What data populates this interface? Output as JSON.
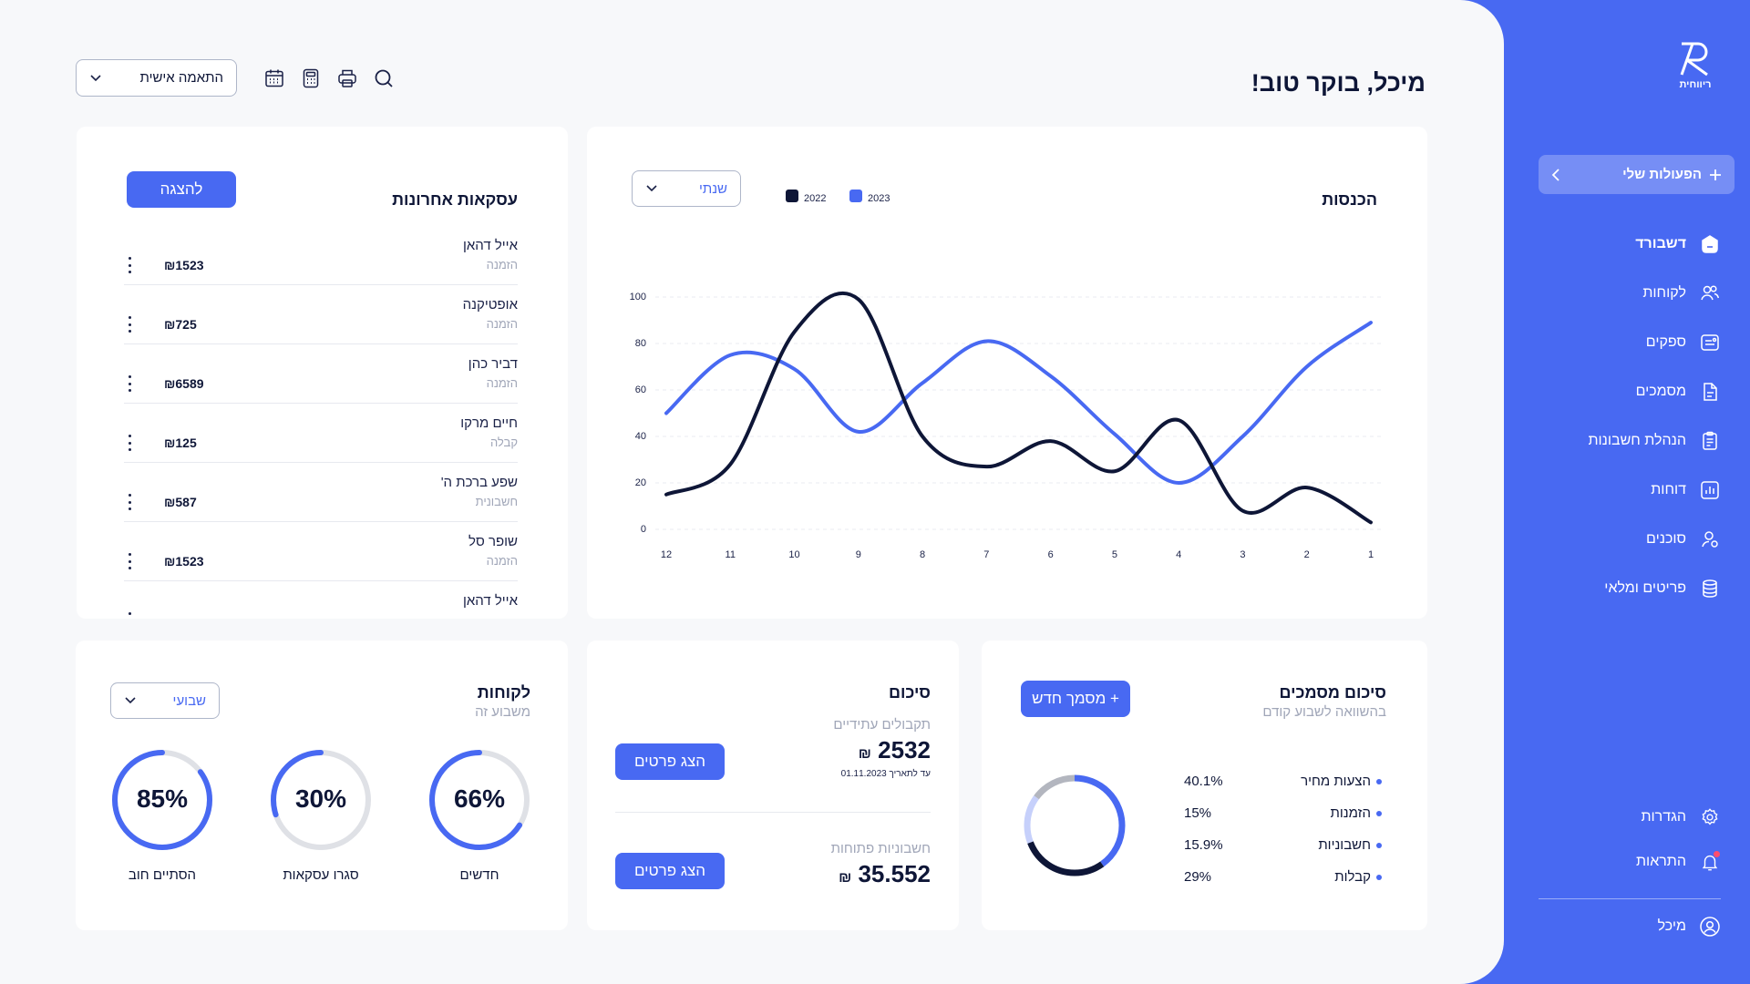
{
  "header": {
    "greeting": "מיכל, בוקר טוב!",
    "customize_label": "התאמה אישית"
  },
  "sidebar": {
    "logo_text": "ריווחית",
    "actions_label": "הפעולות שלי",
    "items": [
      {
        "label": "דשבורד",
        "icon": "dashboard-icon",
        "active": true
      },
      {
        "label": "לקוחות",
        "icon": "customers-icon"
      },
      {
        "label": "ספקים",
        "icon": "suppliers-icon"
      },
      {
        "label": "מסמכים",
        "icon": "documents-icon"
      },
      {
        "label": "הנהלת חשבונות",
        "icon": "bookkeeping-icon"
      },
      {
        "label": "דוחות",
        "icon": "reports-icon"
      },
      {
        "label": "סוכנים",
        "icon": "agents-icon"
      },
      {
        "label": "פריטים ומלאי",
        "icon": "inventory-icon"
      }
    ],
    "settings_label": "הגדרות",
    "notifications_label": "התראות",
    "user_label": "מיכל"
  },
  "deals": {
    "title": "עסקאות אחרונות",
    "view_button": "להצגה",
    "rows": [
      {
        "name": "אייל דהאן",
        "type": "הזמנה",
        "amount": "₪1523"
      },
      {
        "name": "אופטיקנה",
        "type": "הזמנה",
        "amount": "₪725"
      },
      {
        "name": "דביר כהן",
        "type": "הזמנה",
        "amount": "₪6589"
      },
      {
        "name": "חיים מרקו",
        "type": "קבלה",
        "amount": "₪125"
      },
      {
        "name": "שפע ברכת ה'",
        "type": "חשבונית",
        "amount": "₪587"
      },
      {
        "name": "שופר סל",
        "type": "הזמנה",
        "amount": "₪1523"
      },
      {
        "name": "אייל דהאן",
        "type": "",
        "amount": ""
      }
    ]
  },
  "income": {
    "title": "הכנסות",
    "period": "שנתי"
  },
  "chart_data": {
    "type": "line",
    "title": "הכנסות",
    "x": [
      12,
      11,
      10,
      9,
      8,
      7,
      6,
      5,
      4,
      3,
      2,
      1
    ],
    "ylim": [
      0,
      100
    ],
    "yticks": [
      0,
      20,
      40,
      60,
      80,
      100
    ],
    "series": [
      {
        "name": "2023",
        "color": "#4869f2",
        "values": [
          50,
          75,
          69,
          42,
          63,
          81,
          66,
          41,
          20,
          40,
          70,
          89
        ]
      },
      {
        "name": "2022",
        "color": "#0e1637",
        "values": [
          15,
          28,
          85,
          99,
          40,
          27,
          38,
          25,
          47,
          8,
          18,
          3
        ]
      }
    ],
    "legend": "top-left",
    "grid": true
  },
  "customers": {
    "title": "לקוחות",
    "subtitle": "משבוע זה",
    "period": "שבועי",
    "rings": [
      {
        "label": "חדשים",
        "value": "66%",
        "fraction": 0.66
      },
      {
        "label": "סגרו עסקאות",
        "value": "30%",
        "fraction": 0.3
      },
      {
        "label": "הסתיים חוב",
        "value": "85%",
        "fraction": 0.85
      }
    ]
  },
  "summary": {
    "title": "סיכום",
    "future_label": "תקבולים עתידיים",
    "future_amount": "2532",
    "future_currency": "₪",
    "future_date": "עד לתאריך 01.11.2023",
    "open_label": "חשבוניות פתוחות",
    "open_amount": "35.552",
    "open_currency": "₪",
    "details_button": "הצג פרטים"
  },
  "docs_summary": {
    "title": "סיכום מסמכים",
    "subtitle": "בהשוואה לשבוע קודם",
    "new_button": "+ מסמך חדש",
    "items": [
      {
        "label": "הצעות מחיר",
        "value": "40.1%"
      },
      {
        "label": "הזמנות",
        "value": "15%"
      },
      {
        "label": "חשבוניות",
        "value": "15.9%"
      },
      {
        "label": "קבלות",
        "value": "29%"
      }
    ],
    "donut": [
      {
        "fraction": 0.401,
        "color": "#4869f2"
      },
      {
        "fraction": 0.29,
        "color": "#0e1637"
      },
      {
        "fraction": 0.159,
        "color": "#c6d0fb"
      },
      {
        "fraction": 0.15,
        "color": "#b3b6bf"
      }
    ]
  }
}
